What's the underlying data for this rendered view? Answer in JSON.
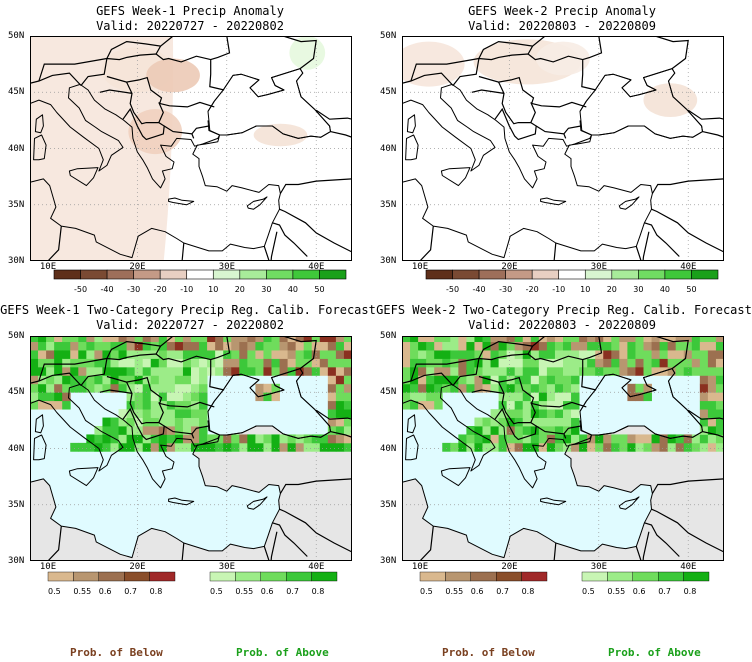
{
  "panels": [
    {
      "title": "GEFS Week-1 Precip Anomaly",
      "valid": "Valid: 20220727 - 20220802"
    },
    {
      "title": "GEFS Week-2 Precip Anomaly",
      "valid": "Valid: 20220803 - 20220809"
    },
    {
      "title": "GEFS Week-1 Two-Category Precip Reg. Calib. Forecast",
      "valid": "Valid: 20220727 - 20220802"
    },
    {
      "title": "GEFS Week-2 Two-Category Precip Reg. Calib. Forecast",
      "valid": "Valid: 20220803 - 20220809"
    }
  ],
  "lat_labels": [
    "50N",
    "45N",
    "40N",
    "35N",
    "30N"
  ],
  "lon_labels": [
    "10E",
    "20E",
    "30E",
    "40E"
  ],
  "anomaly_colorbar": {
    "ticks": [
      "-50",
      "-40",
      "-30",
      "-20",
      "-10",
      "10",
      "20",
      "30",
      "40",
      "50"
    ],
    "colors": [
      "#5e2f1a",
      "#7a4a33",
      "#9e6f5a",
      "#c49a86",
      "#e8cfc2",
      "#ffffff",
      "#d8f5d0",
      "#a8ec9a",
      "#70dc62",
      "#3fc83a",
      "#1aa01a"
    ]
  },
  "prob_below": {
    "ticks": [
      "0.5",
      "0.55",
      "0.6",
      "0.7",
      "0.8"
    ],
    "colors": [
      "#d9b88e",
      "#b89670",
      "#9c7050",
      "#8a4e2a",
      "#a02828"
    ]
  },
  "prob_above": {
    "ticks": [
      "0.5",
      "0.55",
      "0.6",
      "0.7",
      "0.8"
    ],
    "colors": [
      "#c8f5b4",
      "#9cec88",
      "#6fdc5c",
      "#3cc83a",
      "#14b014"
    ]
  },
  "legend": {
    "below": "Prob. of Below",
    "above": "Prob. of Above",
    "below_color": "#7a4020",
    "above_color": "#1aa01a"
  }
}
